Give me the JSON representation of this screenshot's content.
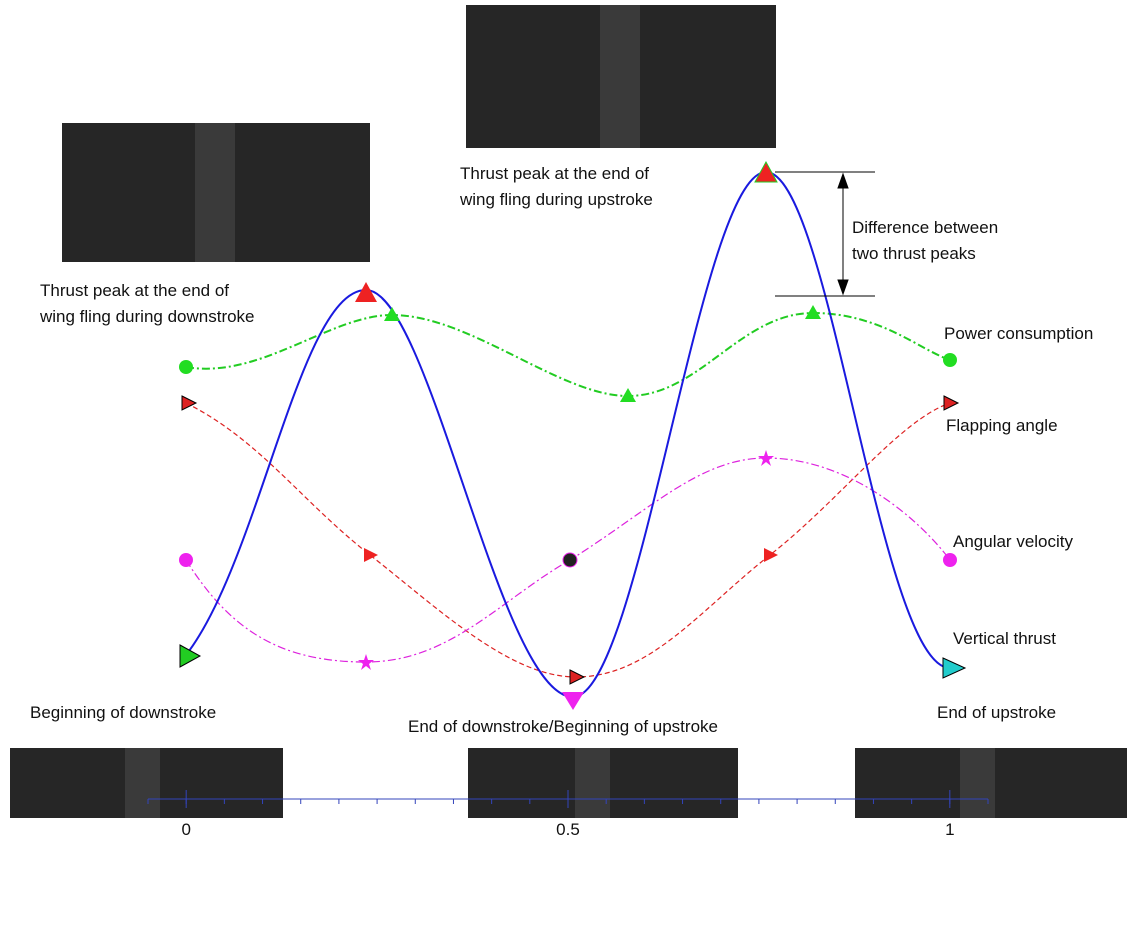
{
  "annotations": {
    "peak_downstroke": [
      "Thrust peak at the end of",
      "wing fling during downstroke"
    ],
    "peak_upstroke": [
      "Thrust peak at the end of",
      "wing fling during upstroke"
    ],
    "difference": [
      "Difference between",
      "two thrust peaks"
    ],
    "beginning_downstroke": "Beginning of downstroke",
    "end_downstroke": "End of downstroke/Beginning of upstroke",
    "end_upstroke": "End of upstroke"
  },
  "legend": {
    "power": {
      "name": "Power consumption",
      "color": "#22dd22"
    },
    "flapping": {
      "name": "Flapping angle",
      "color": "#ee2222"
    },
    "angular": {
      "name": "Angular velocity",
      "color": "#ee22ee"
    },
    "thrust": {
      "name": "Vertical thrust",
      "color": "#1a1adf"
    }
  },
  "axis": {
    "xlim": [
      -0.05,
      1.05
    ],
    "xticks": [
      0,
      0.5,
      1
    ]
  }
}
